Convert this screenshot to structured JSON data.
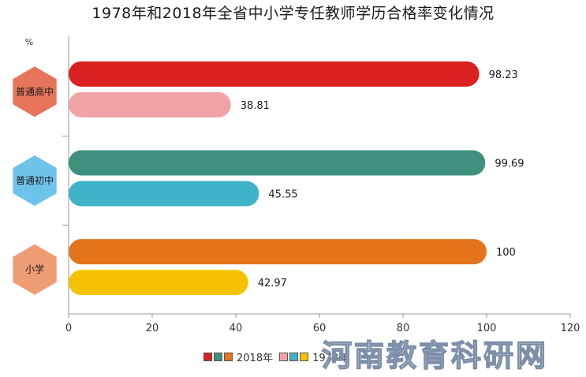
{
  "chart_data": {
    "type": "bar",
    "orientation": "horizontal",
    "title": "1978年和2018年全省中小学专任教师学历合格率变化情况",
    "ylabel": "%",
    "categories": [
      "普通高中",
      "普通初中",
      "小学"
    ],
    "series": [
      {
        "name": "2018年",
        "values": [
          98.23,
          99.69,
          100
        ],
        "labels": [
          "98.23",
          "99.69",
          "100"
        ],
        "colors": [
          "#d92121",
          "#3f917e",
          "#e3741b"
        ]
      },
      {
        "name": "1978年",
        "values": [
          38.81,
          45.55,
          42.97
        ],
        "labels": [
          "38.81",
          "45.55",
          "42.97"
        ],
        "colors": [
          "#f0a2a6",
          "#3fb4c9",
          "#f6c200"
        ]
      }
    ],
    "category_badge_colors": [
      "#e7755c",
      "#6ec3ea",
      "#ee9c73"
    ],
    "xlim": [
      0,
      120
    ],
    "xticks": [
      0,
      20,
      40,
      60,
      80,
      100,
      120
    ],
    "legend_position": "bottom",
    "grid": false
  },
  "watermark": "河南教育科研网"
}
